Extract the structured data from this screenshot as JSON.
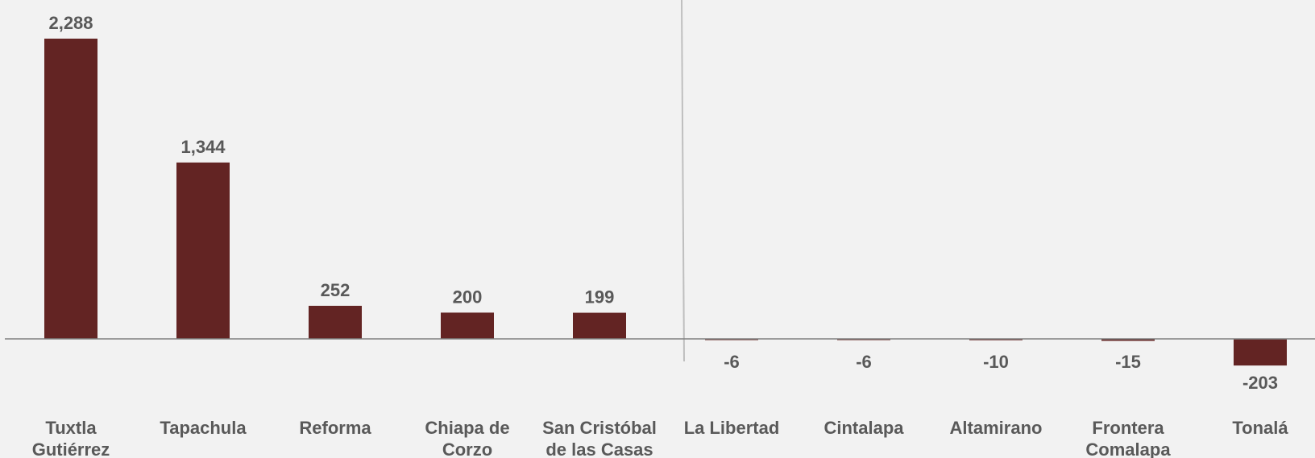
{
  "chart_data": {
    "type": "bar",
    "categories": [
      [
        "Tuxtla",
        "Gutiérrez"
      ],
      [
        "Tapachula"
      ],
      [
        "Reforma"
      ],
      [
        "Chiapa de",
        "Corzo"
      ],
      [
        "San Cristóbal",
        "de las Casas"
      ],
      [
        "La Libertad"
      ],
      [
        "Cintalapa"
      ],
      [
        "Altamirano"
      ],
      [
        "Frontera",
        "Comalapa"
      ],
      [
        "Tonalá"
      ]
    ],
    "values": [
      2288,
      1344,
      252,
      200,
      199,
      -6,
      -6,
      -10,
      -15,
      -203
    ],
    "value_labels": [
      "2,288",
      "1,344",
      "252",
      "200",
      "199",
      "-6",
      "-6",
      "-10",
      "-15",
      "-203"
    ],
    "title": "",
    "xlabel": "",
    "ylabel": "",
    "grid": false,
    "legend": "none",
    "colors": {
      "bar": "#632423",
      "text": "#595959",
      "axis": "#808080",
      "divider": "#bfbfbf",
      "background": "#f2f2f2"
    }
  }
}
